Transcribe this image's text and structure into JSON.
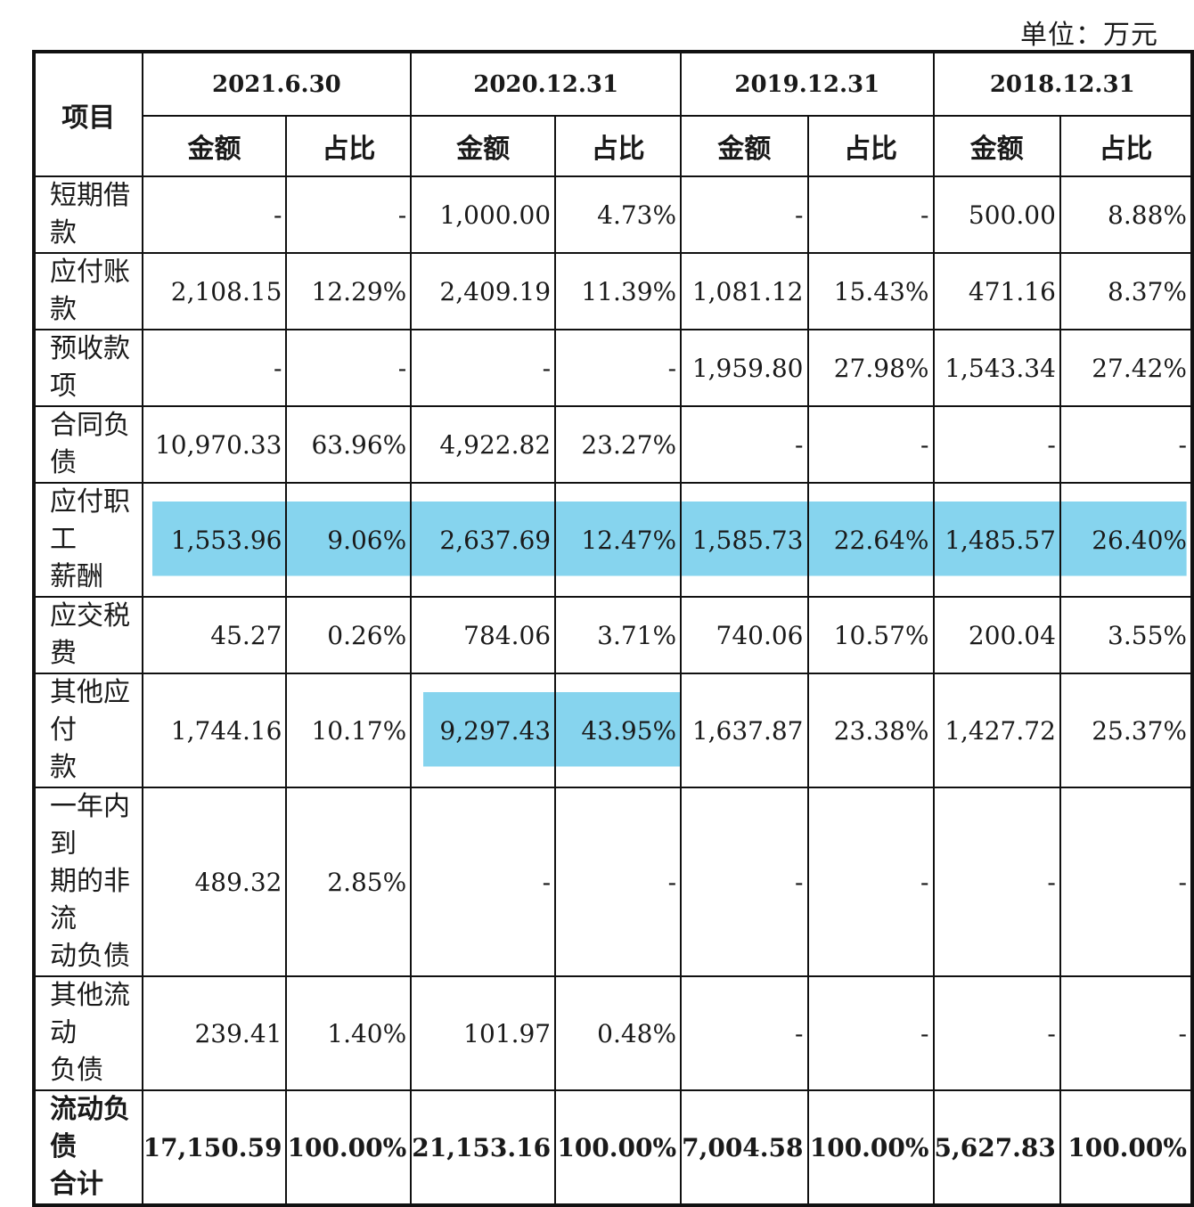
{
  "unit_label": "单位：万元",
  "header": {
    "item": "项目",
    "periods": [
      "2021.6.30",
      "2020.12.31",
      "2019.12.31",
      "2018.12.31"
    ],
    "amount": "金额",
    "ratio": "占比"
  },
  "colors": {
    "highlight": "#86d4ee",
    "border": "#111111"
  },
  "rows": [
    {
      "label": [
        "短期借款"
      ],
      "cells": [
        "-",
        "-",
        "1,000.00",
        "4.73%",
        "-",
        "-",
        "500.00",
        "8.88%"
      ]
    },
    {
      "label": [
        "应付账款"
      ],
      "cells": [
        "2,108.15",
        "12.29%",
        "2,409.19",
        "11.39%",
        "1,081.12",
        "15.43%",
        "471.16",
        "8.37%"
      ]
    },
    {
      "label": [
        "预收款项"
      ],
      "cells": [
        "-",
        "-",
        "-",
        "-",
        "1,959.80",
        "27.98%",
        "1,543.34",
        "27.42%"
      ]
    },
    {
      "label": [
        "合同负债"
      ],
      "cells": [
        "10,970.33",
        "63.96%",
        "4,922.82",
        "23.27%",
        "-",
        "-",
        "-",
        "-"
      ]
    },
    {
      "label": [
        "应付职工",
        "薪酬"
      ],
      "cells": [
        "1,553.96",
        "9.06%",
        "2,637.69",
        "12.47%",
        "1,585.73",
        "22.64%",
        "1,485.57",
        "26.40%"
      ],
      "highlight": [
        0,
        1,
        2,
        3,
        4,
        5,
        6,
        7
      ]
    },
    {
      "label": [
        "应交税费"
      ],
      "cells": [
        "45.27",
        "0.26%",
        "784.06",
        "3.71%",
        "740.06",
        "10.57%",
        "200.04",
        "3.55%"
      ]
    },
    {
      "label": [
        "其他应付",
        "款"
      ],
      "cells": [
        "1,744.16",
        "10.17%",
        "9,297.43",
        "43.95%",
        "1,637.87",
        "23.38%",
        "1,427.72",
        "25.37%"
      ],
      "highlight": [
        2,
        3
      ]
    },
    {
      "label": [
        "一年内到",
        "期的非流",
        "动负债"
      ],
      "cells": [
        "489.32",
        "2.85%",
        "-",
        "-",
        "-",
        "-",
        "-",
        "-"
      ]
    },
    {
      "label": [
        "其他流动",
        "负债"
      ],
      "cells": [
        "239.41",
        "1.40%",
        "101.97",
        "0.48%",
        "-",
        "-",
        "-",
        "-"
      ]
    },
    {
      "label": [
        "流动负债",
        "合计"
      ],
      "cells": [
        "17,150.59",
        "100.00%",
        "21,153.16",
        "100.00%",
        "7,004.58",
        "100.00%",
        "5,627.83",
        "100.00%"
      ],
      "total": true
    }
  ]
}
